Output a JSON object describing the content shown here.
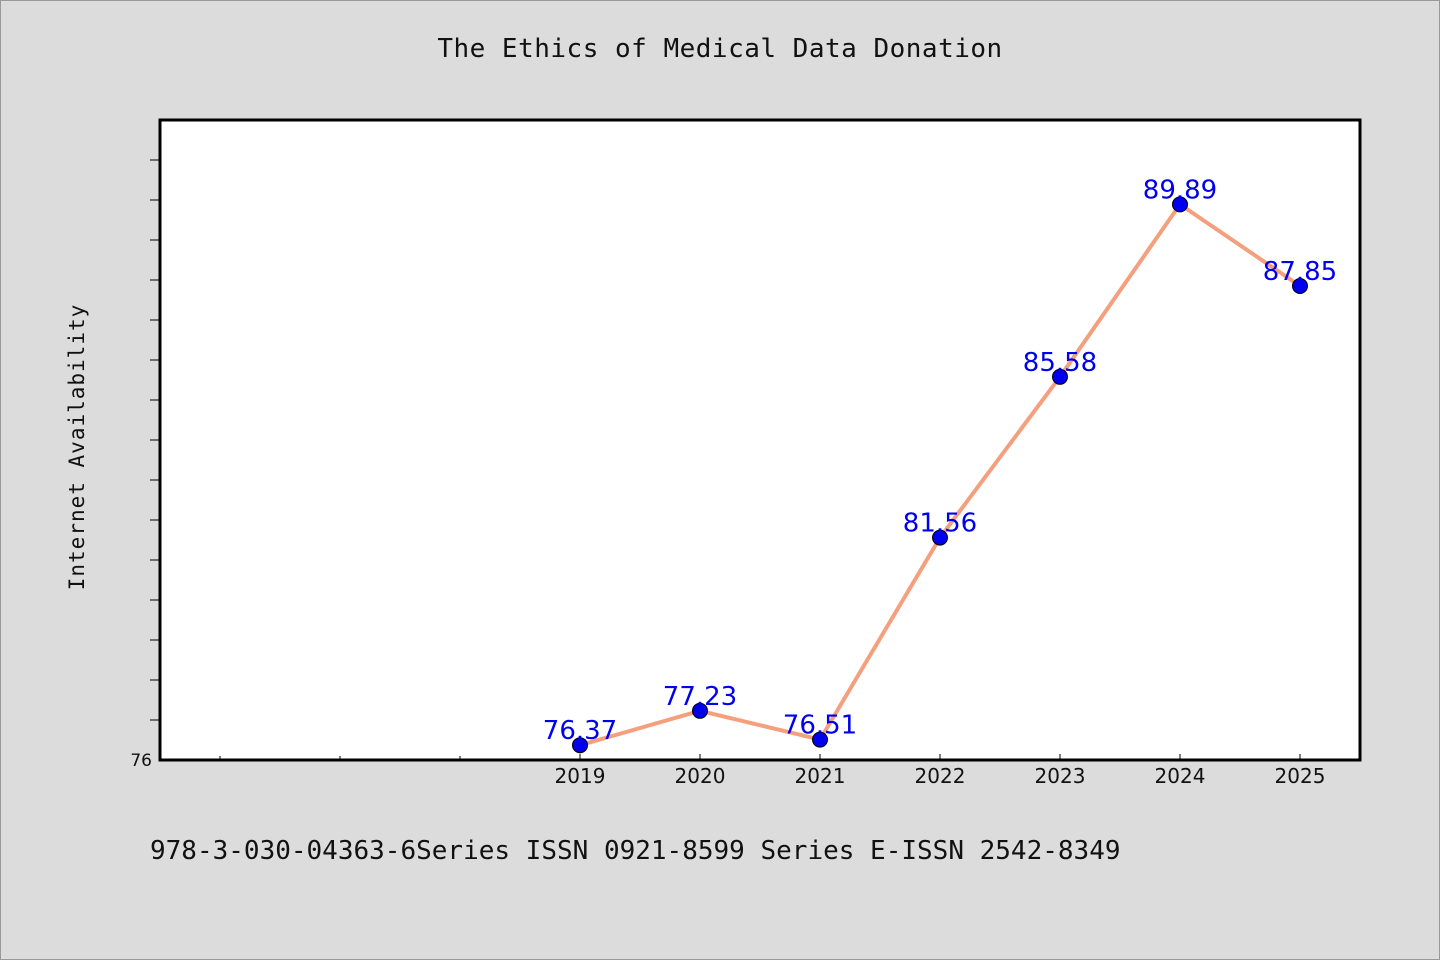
{
  "chart_data": {
    "type": "line",
    "title": "The Ethics of Medical Data Donation",
    "xlabel": "",
    "ylabel": "Internet Availability",
    "x": [
      "2019",
      "2020",
      "2021",
      "2022",
      "2023",
      "2024",
      "2025"
    ],
    "y": [
      76.37,
      77.23,
      76.51,
      81.56,
      85.58,
      89.89,
      87.85
    ],
    "data_labels": [
      "76.37",
      "77.23",
      "76.51",
      "81.56",
      "85.58",
      "89.89",
      "87.85"
    ],
    "y_tick_labels": [
      "76"
    ],
    "ylim": [
      76,
      92
    ],
    "grid": false,
    "legend": "none",
    "colors": {
      "line": "#f4a07f",
      "marker": "#0000ee",
      "label": "#0000ee",
      "background": "#dcdcdc",
      "plot_bg": "#ffffff"
    }
  },
  "footer": {
    "text": "978-3-030-04363-6Series ISSN 0921-8599 Series E-ISSN 2542-8349"
  }
}
